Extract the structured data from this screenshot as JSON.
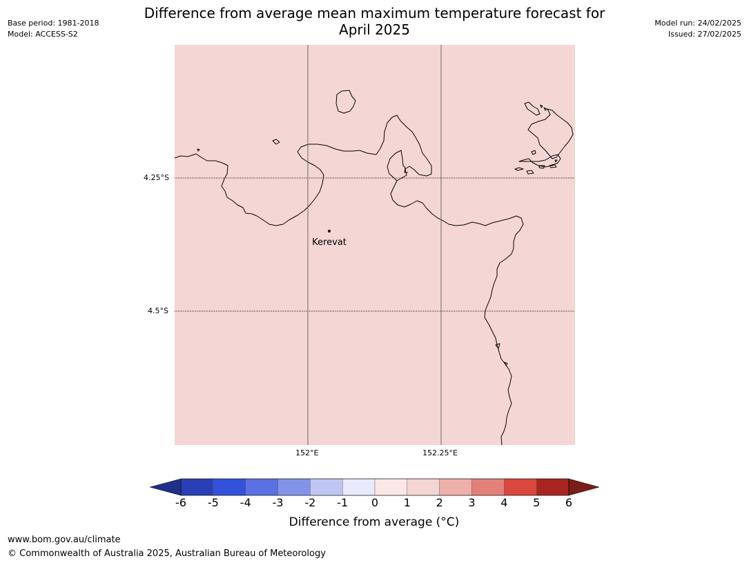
{
  "header": {
    "title_line1": "Difference from average mean maximum temperature forecast for",
    "title_line2": "April 2025",
    "base_period": "Base period: 1981-2018",
    "model": "Model: ACCESS-S2",
    "model_run": "Model run: 24/02/2025",
    "issued": "Issued: 27/02/2025"
  },
  "map": {
    "fill_color": "#f4d6d4",
    "coast_color": "#000000",
    "grid": {
      "lat_labels": [
        "4.25°S",
        "4.5°S"
      ],
      "lon_labels": [
        "152°E",
        "152.25°E"
      ]
    },
    "places": [
      {
        "name": "Kerevat"
      }
    ]
  },
  "colorbar": {
    "tick_labels": [
      "-6",
      "-5",
      "-4",
      "-3",
      "-2",
      "-1",
      "0",
      "1",
      "2",
      "3",
      "4",
      "5",
      "6"
    ],
    "colors": [
      "#1f2f8a",
      "#2a3fb5",
      "#3352dc",
      "#5b70e3",
      "#8493ea",
      "#c0c6f3",
      "#e8eafb",
      "#fbe8e6",
      "#f4d6d4",
      "#eeb0ab",
      "#e4807a",
      "#d9473d",
      "#a8261f",
      "#7a1d18"
    ],
    "caption": "Difference from average (°C)"
  },
  "footer": {
    "url": "www.bom.gov.au/climate",
    "copyright": "© Commonwealth of Australia 2025, Australian Bureau of Meteorology"
  }
}
